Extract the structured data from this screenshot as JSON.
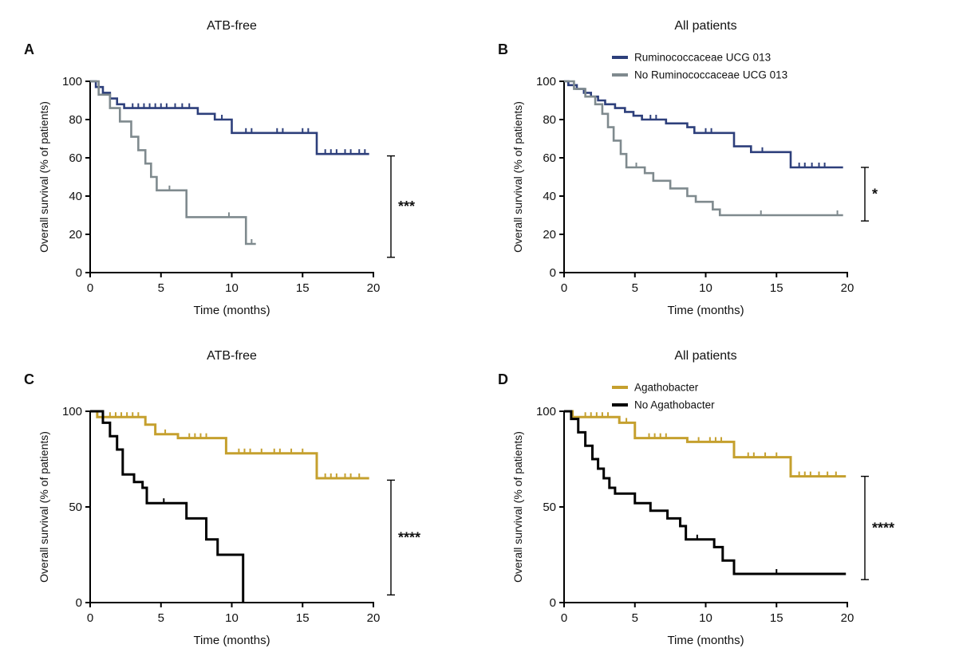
{
  "figure": {
    "description_colors": {
      "blue": "#2d3f7b",
      "gray": "#7f8a8e",
      "gold": "#c5a02e",
      "black": "#000000"
    }
  },
  "chart_data": [
    {
      "type": "line",
      "subtype": "kaplan-meier-step",
      "panel_label": "A",
      "title": "ATB-free",
      "xlabel": "Time (months)",
      "ylabel": "Overall survival (% of patients)",
      "xlim": [
        0,
        20
      ],
      "ylim": [
        0,
        100
      ],
      "xticks": [
        0,
        5,
        10,
        15,
        20
      ],
      "yticks": [
        0,
        20,
        40,
        60,
        80,
        100
      ],
      "grid": false,
      "legend": null,
      "significance": {
        "label": "***",
        "y_top": 61,
        "y_bottom": 8
      },
      "series": [
        {
          "name": "Ruminococcaceae UCG 013",
          "color": "#2d3f7b",
          "lw": 2.6,
          "end_x": 19.7,
          "steps": [
            [
              0,
              100
            ],
            [
              0.4,
              97
            ],
            [
              0.9,
              94
            ],
            [
              1.4,
              91
            ],
            [
              1.9,
              88
            ],
            [
              2.4,
              86
            ],
            [
              7.6,
              83
            ],
            [
              8.8,
              80
            ],
            [
              10,
              73
            ],
            [
              16,
              62
            ]
          ],
          "censors": [
            3,
            3.4,
            3.8,
            4.2,
            4.6,
            5,
            5.4,
            6,
            6.5,
            7,
            9.3,
            11,
            11.4,
            13.2,
            13.6,
            15,
            15.4,
            16.6,
            17,
            17.4,
            18,
            18.4,
            19,
            19.4
          ]
        },
        {
          "name": "No Ruminococcaceae UCG 013",
          "color": "#7f8a8e",
          "lw": 2.6,
          "end_x": 11.7,
          "steps": [
            [
              0,
              100
            ],
            [
              0.6,
              93
            ],
            [
              1.4,
              86
            ],
            [
              2.1,
              79
            ],
            [
              2.9,
              71
            ],
            [
              3.4,
              64
            ],
            [
              3.9,
              57
            ],
            [
              4.3,
              50
            ],
            [
              4.7,
              43
            ],
            [
              6.8,
              29
            ],
            [
              11,
              15
            ]
          ],
          "censors": [
            5.6,
            9.8,
            11.4
          ]
        }
      ]
    },
    {
      "type": "line",
      "subtype": "kaplan-meier-step",
      "panel_label": "B",
      "title": "All patients",
      "xlabel": "Time (months)",
      "ylabel": "Overall survival (% of patients)",
      "xlim": [
        0,
        20
      ],
      "ylim": [
        0,
        100
      ],
      "xticks": [
        0,
        5,
        10,
        15,
        20
      ],
      "yticks": [
        0,
        20,
        40,
        60,
        80,
        100
      ],
      "grid": false,
      "legend": {
        "items": [
          {
            "label": "Ruminococcaceae UCG 013",
            "color": "#2d3f7b"
          },
          {
            "label": "No Ruminococcaceae UCG 013",
            "color": "#7f8a8e"
          }
        ]
      },
      "significance": {
        "label": "*",
        "y_top": 55,
        "y_bottom": 27
      },
      "series": [
        {
          "name": "Ruminococcaceae UCG 013",
          "color": "#2d3f7b",
          "lw": 2.6,
          "end_x": 19.7,
          "steps": [
            [
              0,
              100
            ],
            [
              0.3,
              98
            ],
            [
              0.9,
              96
            ],
            [
              1.4,
              94
            ],
            [
              1.9,
              92
            ],
            [
              2.4,
              90
            ],
            [
              2.9,
              88
            ],
            [
              3.6,
              86
            ],
            [
              4.3,
              84
            ],
            [
              4.9,
              82
            ],
            [
              5.5,
              80
            ],
            [
              7.2,
              78
            ],
            [
              8.7,
              76
            ],
            [
              9.2,
              73
            ],
            [
              12,
              66
            ],
            [
              13.2,
              63
            ],
            [
              16,
              55
            ]
          ],
          "censors": [
            6.1,
            6.5,
            10,
            10.4,
            14,
            16.6,
            17,
            17.5,
            18,
            18.4
          ]
        },
        {
          "name": "No Ruminococcaceae UCG 013",
          "color": "#7f8a8e",
          "lw": 2.6,
          "end_x": 19.7,
          "steps": [
            [
              0,
              100
            ],
            [
              0.7,
              96
            ],
            [
              1.5,
              92
            ],
            [
              2.2,
              88
            ],
            [
              2.7,
              83
            ],
            [
              3.1,
              76
            ],
            [
              3.5,
              69
            ],
            [
              4,
              62
            ],
            [
              4.4,
              55
            ],
            [
              5.7,
              52
            ],
            [
              6.3,
              48
            ],
            [
              7.5,
              44
            ],
            [
              8.7,
              40
            ],
            [
              9.3,
              37
            ],
            [
              10.5,
              33
            ],
            [
              11,
              30
            ]
          ],
          "censors": [
            5.1,
            13.9,
            19.3
          ]
        }
      ]
    },
    {
      "type": "line",
      "subtype": "kaplan-meier-step",
      "panel_label": "C",
      "title": "ATB-free",
      "xlabel": "Time (months)",
      "ylabel": "Overall survival (% of patients)",
      "xlim": [
        0,
        20
      ],
      "ylim": [
        0,
        100
      ],
      "xticks": [
        0,
        5,
        10,
        15,
        20
      ],
      "yticks": [
        0,
        50,
        100
      ],
      "grid": false,
      "legend": null,
      "significance": {
        "label": "****",
        "y_top": 64,
        "y_bottom": 4
      },
      "series": [
        {
          "name": "Agathobacter",
          "color": "#c5a02e",
          "lw": 3,
          "end_x": 19.7,
          "steps": [
            [
              0,
              100
            ],
            [
              0.5,
              97
            ],
            [
              3.9,
              93
            ],
            [
              4.6,
              88
            ],
            [
              6.2,
              86
            ],
            [
              9.6,
              78
            ],
            [
              16,
              65
            ]
          ],
          "censors": [
            1.4,
            1.8,
            2.2,
            2.6,
            3,
            3.4,
            5.3,
            7,
            7.4,
            7.8,
            8.2,
            10.5,
            10.9,
            11.3,
            12.1,
            13,
            13.4,
            14.2,
            15,
            16.6,
            17,
            17.4,
            18,
            18.4,
            19
          ]
        },
        {
          "name": "No Agathobacter",
          "color": "#000000",
          "lw": 3,
          "end_x": 10.8,
          "steps": [
            [
              0,
              100
            ],
            [
              0.9,
              94
            ],
            [
              1.4,
              87
            ],
            [
              1.9,
              80
            ],
            [
              2.3,
              67
            ],
            [
              3.1,
              63
            ],
            [
              3.7,
              60
            ],
            [
              4,
              52
            ],
            [
              6.8,
              44
            ],
            [
              8.2,
              33
            ],
            [
              9,
              25
            ],
            [
              10.8,
              0
            ]
          ],
          "censors": [
            5.2
          ]
        }
      ]
    },
    {
      "type": "line",
      "subtype": "kaplan-meier-step",
      "panel_label": "D",
      "title": "All patients",
      "xlabel": "Time (months)",
      "ylabel": "Overall survival (% of patients)",
      "xlim": [
        0,
        20
      ],
      "ylim": [
        0,
        100
      ],
      "xticks": [
        0,
        5,
        10,
        15,
        20
      ],
      "yticks": [
        0,
        50,
        100
      ],
      "grid": false,
      "legend": {
        "items": [
          {
            "label": "Agathobacter",
            "color": "#c5a02e"
          },
          {
            "label": "No Agathobacter",
            "color": "#000000"
          }
        ]
      },
      "significance": {
        "label": "****",
        "y_top": 66,
        "y_bottom": 12
      },
      "series": [
        {
          "name": "Agathobacter",
          "color": "#c5a02e",
          "lw": 3,
          "end_x": 19.9,
          "steps": [
            [
              0,
              100
            ],
            [
              0.6,
              97
            ],
            [
              3.9,
              94
            ],
            [
              5,
              86
            ],
            [
              8.7,
              84
            ],
            [
              12,
              76
            ],
            [
              16,
              66
            ]
          ],
          "censors": [
            1.5,
            1.9,
            2.3,
            2.7,
            3.1,
            4.4,
            6,
            6.4,
            6.8,
            7.2,
            9.5,
            10.3,
            10.7,
            11.1,
            13,
            13.4,
            14.2,
            15,
            16.6,
            17,
            17.4,
            18,
            18.6,
            19.2
          ]
        },
        {
          "name": "No Agathobacter",
          "color": "#000000",
          "lw": 3,
          "end_x": 19.9,
          "steps": [
            [
              0,
              100
            ],
            [
              0.5,
              96
            ],
            [
              1,
              89
            ],
            [
              1.5,
              82
            ],
            [
              2,
              75
            ],
            [
              2.4,
              70
            ],
            [
              2.8,
              65
            ],
            [
              3.2,
              60
            ],
            [
              3.6,
              57
            ],
            [
              5,
              52
            ],
            [
              6.1,
              48
            ],
            [
              7.3,
              44
            ],
            [
              8.2,
              40
            ],
            [
              8.6,
              33
            ],
            [
              10.6,
              29
            ],
            [
              11.2,
              22
            ],
            [
              12,
              15
            ]
          ],
          "censors": [
            9.4,
            15
          ]
        }
      ]
    }
  ]
}
